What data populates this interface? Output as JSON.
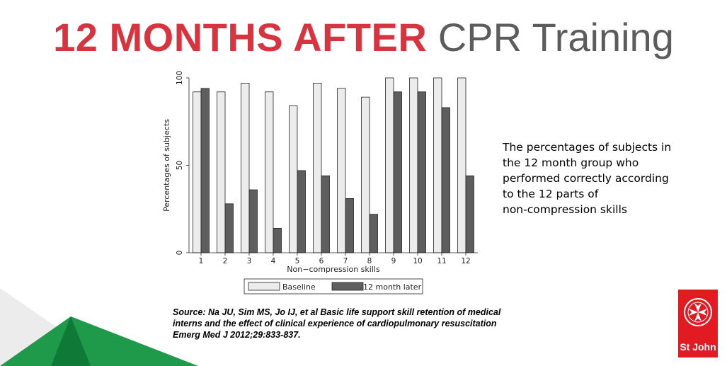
{
  "slide": {
    "title_highlight": "12 MONTHS AFTER",
    "title_rest": "CPR Training",
    "caption_lines": [
      "The percentages of subjects in",
      "the 12 month group who",
      "performed correctly according",
      "to the 12 parts of",
      "non-compression skills"
    ],
    "source_lines": [
      "Source: Na JU, Sim MS, Jo IJ, et al Basic life support skill retention of medical",
      "interns and the effect of clinical experience of cardiopulmonary resuscitation",
      "Emerg Med J 2012;29:833-837."
    ],
    "logo_text": "St John",
    "colors": {
      "accent_red": "#d7343f",
      "title_gray": "#5c5c5c",
      "logo_red": "#e21b23",
      "green_light": "#1e9a4a",
      "green_dark": "#0f7a37",
      "gray_deco": "#ececec"
    }
  },
  "chart_data": {
    "type": "bar",
    "categories": [
      "1",
      "2",
      "3",
      "4",
      "5",
      "6",
      "7",
      "8",
      "9",
      "10",
      "11",
      "12"
    ],
    "series": [
      {
        "name": "Baseline",
        "color": "#ececec",
        "values": [
          92,
          92,
          97,
          92,
          84,
          97,
          94,
          89,
          100,
          100,
          100,
          100
        ]
      },
      {
        "name": "12 month later",
        "color": "#5e5e5e",
        "values": [
          94,
          28,
          36,
          14,
          47,
          44,
          31,
          22,
          92,
          92,
          83,
          44
        ]
      }
    ],
    "xlabel": "Non−compression skills",
    "ylabel": "Percentages of subjects",
    "ylim": [
      0,
      100
    ],
    "yticks": [
      0,
      50,
      100
    ],
    "grid": false,
    "legend_position": "bottom"
  }
}
